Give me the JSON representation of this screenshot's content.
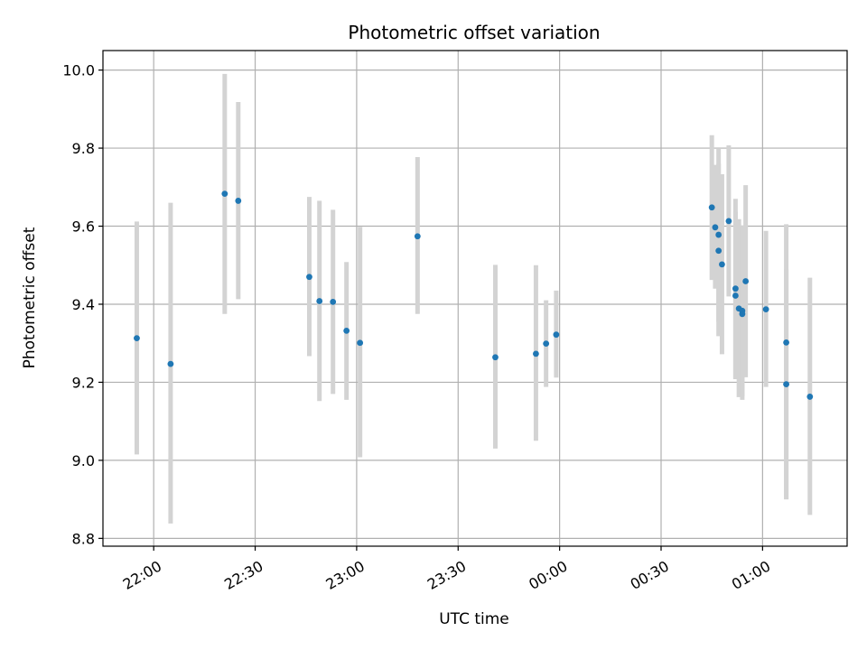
{
  "chart_data": {
    "type": "scatter",
    "title": "Photometric offset variation",
    "xlabel": "UTC time",
    "ylabel": "Photometric offset",
    "xlim": [
      "21:45",
      "01:25"
    ],
    "ylim": [
      8.78,
      10.05
    ],
    "yticks": [
      "8.8",
      "9.0",
      "9.2",
      "9.4",
      "9.6",
      "9.8",
      "10.0"
    ],
    "xticks": [
      "22:00",
      "22:30",
      "23:00",
      "23:30",
      "00:00",
      "00:30",
      "01:00"
    ],
    "grid": true,
    "colors": {
      "point": "#1f77b4",
      "errorbar": "#d3d3d3",
      "grid": "#b0b0b0"
    },
    "points": [
      {
        "x": "21:55",
        "y": 9.313,
        "ylo": 9.015,
        "yhi": 9.612
      },
      {
        "x": "22:05",
        "y": 9.247,
        "ylo": 8.838,
        "yhi": 9.66
      },
      {
        "x": "22:21",
        "y": 9.683,
        "ylo": 9.375,
        "yhi": 9.99
      },
      {
        "x": "22:25",
        "y": 9.665,
        "ylo": 9.413,
        "yhi": 9.918
      },
      {
        "x": "22:46",
        "y": 9.47,
        "ylo": 9.267,
        "yhi": 9.675
      },
      {
        "x": "22:49",
        "y": 9.408,
        "ylo": 9.152,
        "yhi": 9.665
      },
      {
        "x": "22:53",
        "y": 9.406,
        "ylo": 9.17,
        "yhi": 9.642
      },
      {
        "x": "22:57",
        "y": 9.332,
        "ylo": 9.155,
        "yhi": 9.508
      },
      {
        "x": "23:01",
        "y": 9.301,
        "ylo": 9.008,
        "yhi": 9.598
      },
      {
        "x": "23:18",
        "y": 9.574,
        "ylo": 9.375,
        "yhi": 9.777
      },
      {
        "x": "23:41",
        "y": 9.264,
        "ylo": 9.03,
        "yhi": 9.501
      },
      {
        "x": "23:53",
        "y": 9.273,
        "ylo": 9.05,
        "yhi": 9.5
      },
      {
        "x": "23:56",
        "y": 9.299,
        "ylo": 9.188,
        "yhi": 9.41
      },
      {
        "x": "23:59",
        "y": 9.322,
        "ylo": 9.212,
        "yhi": 9.435
      },
      {
        "x": "00:45",
        "y": 9.648,
        "ylo": 9.462,
        "yhi": 9.833
      },
      {
        "x": "00:46",
        "y": 9.597,
        "ylo": 9.44,
        "yhi": 9.757
      },
      {
        "x": "00:47",
        "y": 9.537,
        "ylo": 9.318,
        "yhi": 9.76
      },
      {
        "x": "00:47",
        "y": 9.578,
        "ylo": 9.355,
        "yhi": 9.8
      },
      {
        "x": "00:48",
        "y": 9.502,
        "ylo": 9.272,
        "yhi": 9.733
      },
      {
        "x": "00:50",
        "y": 9.613,
        "ylo": 9.42,
        "yhi": 9.807
      },
      {
        "x": "00:52",
        "y": 9.44,
        "ylo": 9.21,
        "yhi": 9.67
      },
      {
        "x": "00:52",
        "y": 9.422,
        "ylo": 9.208,
        "yhi": 9.637
      },
      {
        "x": "00:53",
        "y": 9.389,
        "ylo": 9.162,
        "yhi": 9.618
      },
      {
        "x": "00:54",
        "y": 9.383,
        "ylo": 9.165,
        "yhi": 9.602
      },
      {
        "x": "00:54",
        "y": 9.375,
        "ylo": 9.155,
        "yhi": 9.595
      },
      {
        "x": "00:55",
        "y": 9.459,
        "ylo": 9.213,
        "yhi": 9.705
      },
      {
        "x": "01:01",
        "y": 9.387,
        "ylo": 9.188,
        "yhi": 9.588
      },
      {
        "x": "01:07",
        "y": 9.302,
        "ylo": 8.9,
        "yhi": 9.605
      },
      {
        "x": "01:07",
        "y": 9.195,
        "ylo": 8.9,
        "yhi": 9.49
      },
      {
        "x": "01:14",
        "y": 9.163,
        "ylo": 8.86,
        "yhi": 9.468
      }
    ]
  }
}
